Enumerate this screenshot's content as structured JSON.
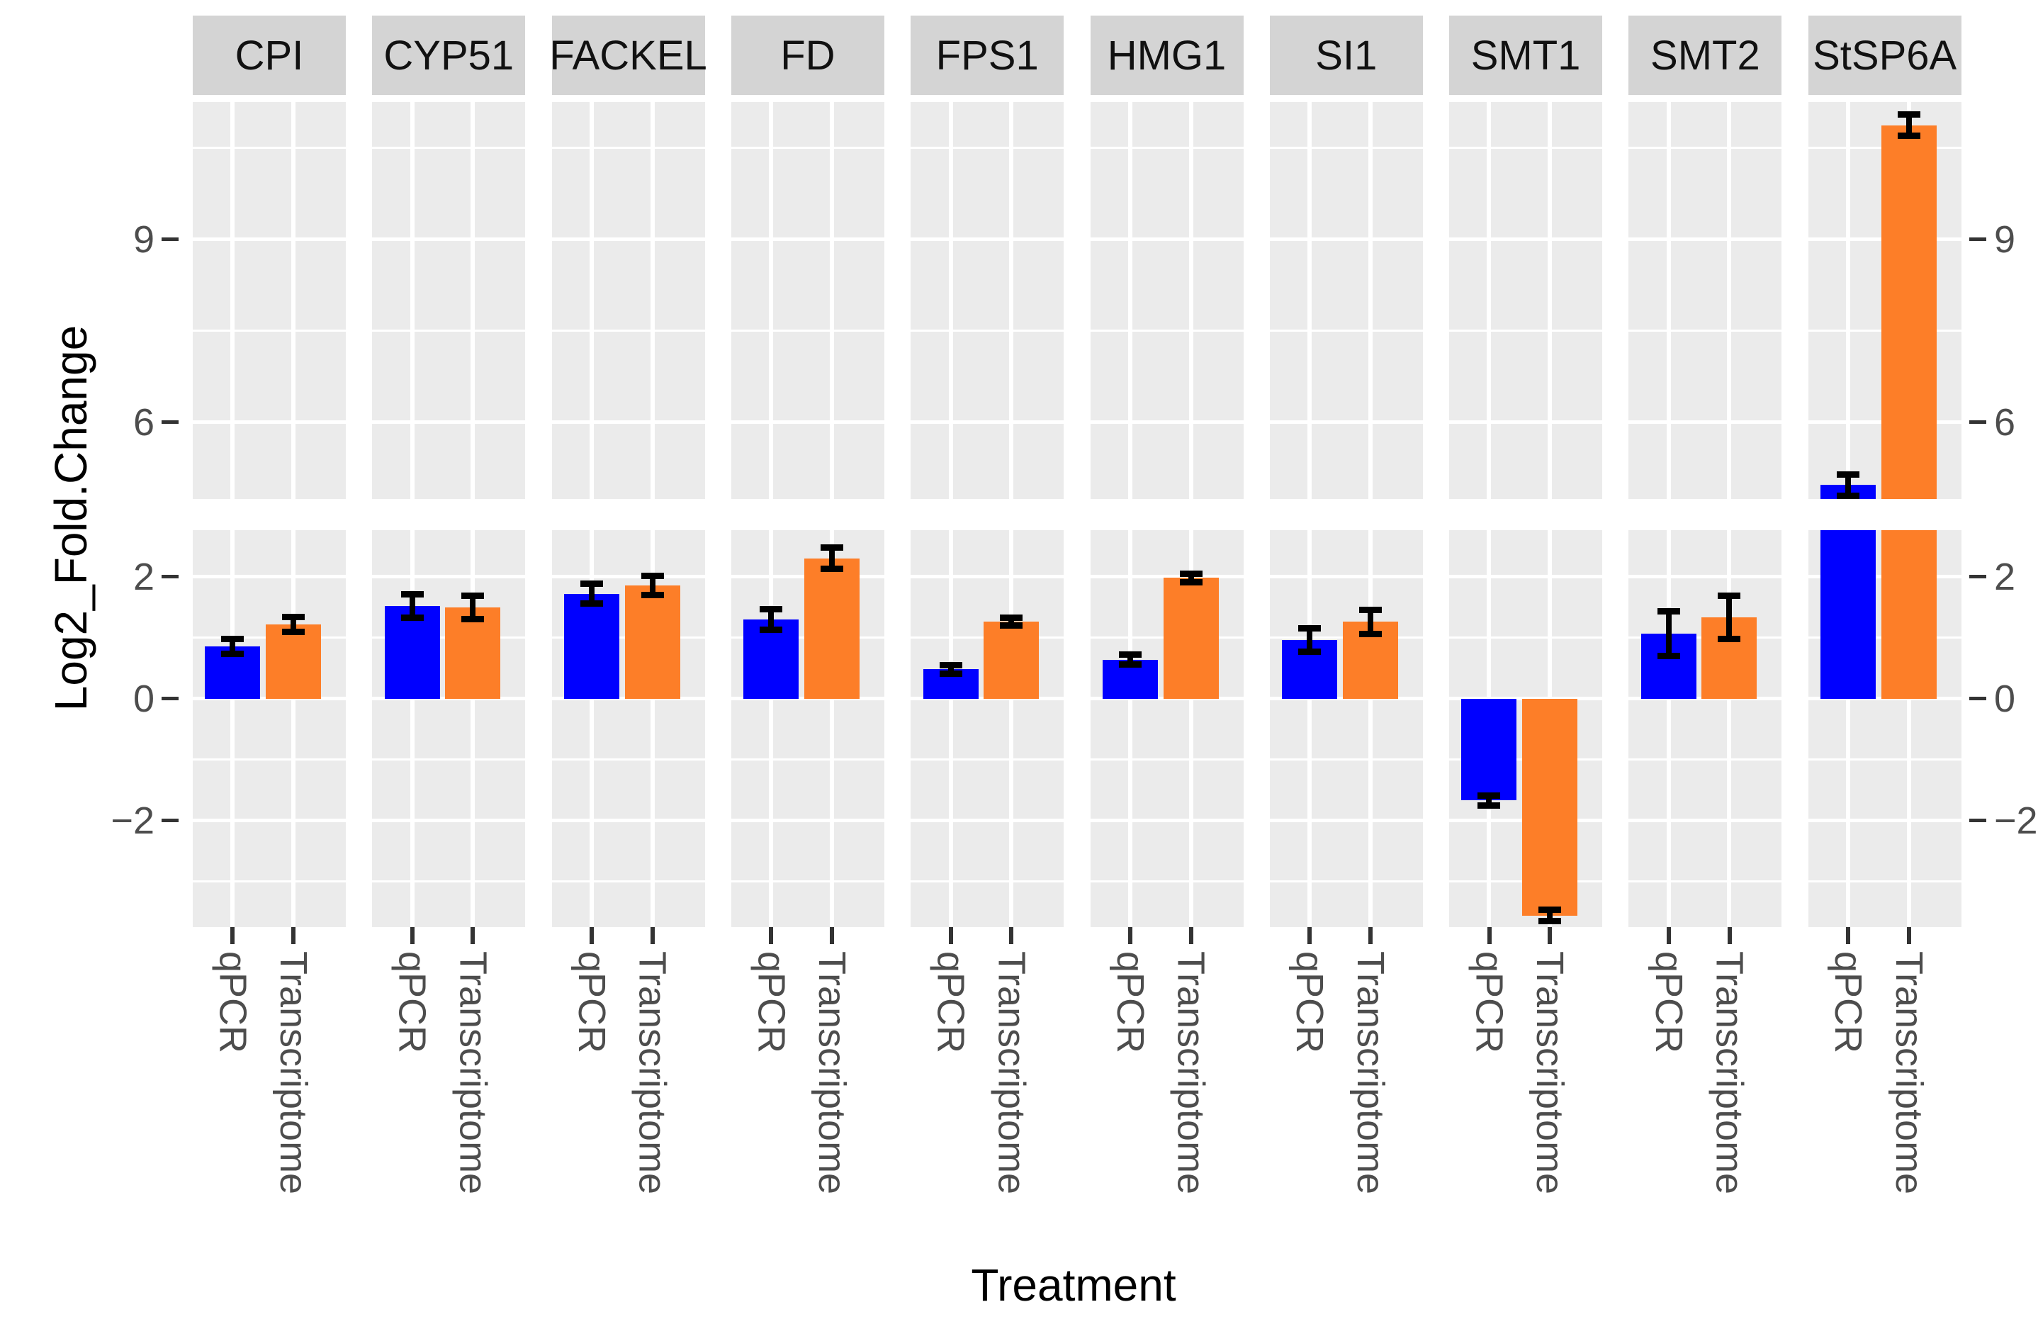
{
  "chart_data": {
    "type": "bar",
    "title": "",
    "xlabel": "Treatment",
    "ylabel": "Log2_Fold.Change",
    "legend_position": "none",
    "grid": true,
    "categories": [
      "qPCR",
      "Transcriptome"
    ],
    "bar_colors": {
      "qPCR": "#0000FF",
      "Transcriptome": "#FD7E28"
    },
    "facets": [
      {
        "label": "CPI",
        "bars": [
          {
            "category": "qPCR",
            "value": 0.86,
            "error": 0.13
          },
          {
            "category": "Transcriptome",
            "value": 1.22,
            "error": 0.13
          }
        ]
      },
      {
        "label": "CYP51",
        "bars": [
          {
            "category": "qPCR",
            "value": 1.52,
            "error": 0.2
          },
          {
            "category": "Transcriptome",
            "value": 1.5,
            "error": 0.2
          }
        ]
      },
      {
        "label": "FACKEL",
        "bars": [
          {
            "category": "qPCR",
            "value": 1.72,
            "error": 0.17
          },
          {
            "category": "Transcriptome",
            "value": 1.86,
            "error": 0.16
          }
        ]
      },
      {
        "label": "FD",
        "bars": [
          {
            "category": "qPCR",
            "value": 1.3,
            "error": 0.17
          },
          {
            "category": "Transcriptome",
            "value": 2.3,
            "error": 0.18
          }
        ]
      },
      {
        "label": "FPS1",
        "bars": [
          {
            "category": "qPCR",
            "value": 0.48,
            "error": 0.08
          },
          {
            "category": "Transcriptome",
            "value": 1.26,
            "error": 0.07
          }
        ]
      },
      {
        "label": "HMG1",
        "bars": [
          {
            "category": "qPCR",
            "value": 0.64,
            "error": 0.09
          },
          {
            "category": "Transcriptome",
            "value": 1.98,
            "error": 0.08
          }
        ]
      },
      {
        "label": "SI1",
        "bars": [
          {
            "category": "qPCR",
            "value": 0.96,
            "error": 0.2
          },
          {
            "category": "Transcriptome",
            "value": 1.26,
            "error": 0.2
          }
        ]
      },
      {
        "label": "SMT1",
        "bars": [
          {
            "category": "qPCR",
            "value": -1.67,
            "error": 0.09
          },
          {
            "category": "Transcriptome",
            "value": -3.56,
            "error": 0.1
          }
        ]
      },
      {
        "label": "SMT2",
        "bars": [
          {
            "category": "qPCR",
            "value": 1.07,
            "error": 0.37
          },
          {
            "category": "Transcriptome",
            "value": 1.33,
            "error": 0.36
          }
        ]
      },
      {
        "label": "StSP6A",
        "bars": [
          {
            "category": "qPCR",
            "value": 4.97,
            "error": 0.18
          },
          {
            "category": "Transcriptome",
            "value": 10.87,
            "error": 0.18
          }
        ]
      }
    ],
    "y_axis": {
      "broken": true,
      "upper_panel_range": [
        4.74,
        11.25
      ],
      "lower_panel_range": [
        -3.75,
        2.76
      ],
      "upper_ticks": [
        {
          "label": "9",
          "value": 9
        },
        {
          "label": "6",
          "value": 6
        }
      ],
      "lower_ticks": [
        {
          "label": "2",
          "value": 2
        },
        {
          "label": "0",
          "value": 0
        },
        {
          "label": "−2",
          "value": -2
        }
      ],
      "upper_minor_gridlines": [
        10.5,
        7.5
      ],
      "lower_minor_gridlines": [
        1,
        -1,
        -3
      ],
      "ticks_on_both_sides": true
    },
    "colors": {
      "panel_background": "#EBEBEB",
      "strip_background": "#D4D4D4",
      "gridline": "#FFFFFF",
      "tick_text": "#4D4D4D",
      "tick_mark": "#333333",
      "error_bar": "#000000",
      "title_text": "#000000",
      "figure_background": "#FFFFFF"
    }
  }
}
